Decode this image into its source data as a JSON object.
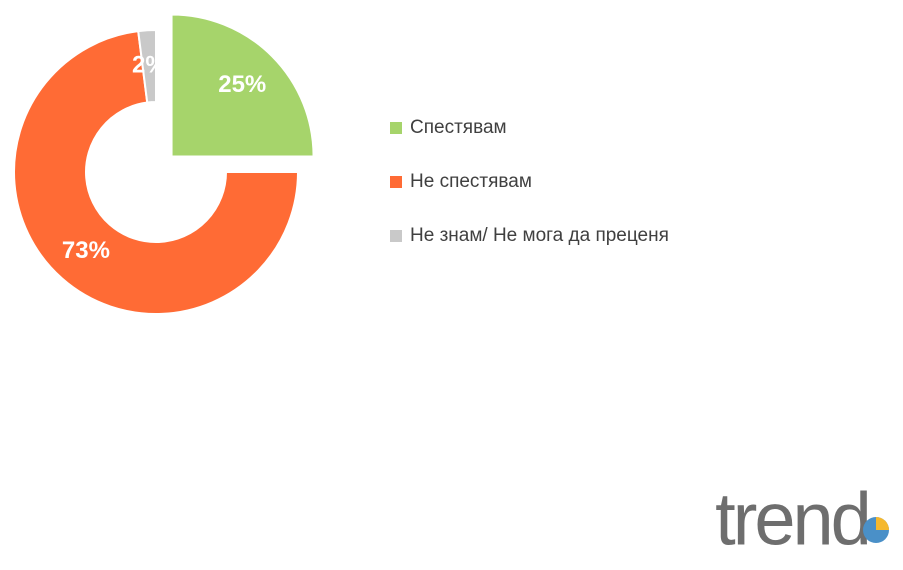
{
  "chart_data": {
    "type": "pie",
    "categories": [
      "Спестявам",
      "Не спестявам",
      "Не знам/ Не мога да преценя"
    ],
    "values": [
      25,
      73,
      2
    ],
    "value_labels": [
      "25%",
      "73%",
      "2%"
    ],
    "colors": [
      "#a6d46b",
      "#ff6b35",
      "#c9c9c9"
    ],
    "legend": "right"
  },
  "logo": "trend"
}
